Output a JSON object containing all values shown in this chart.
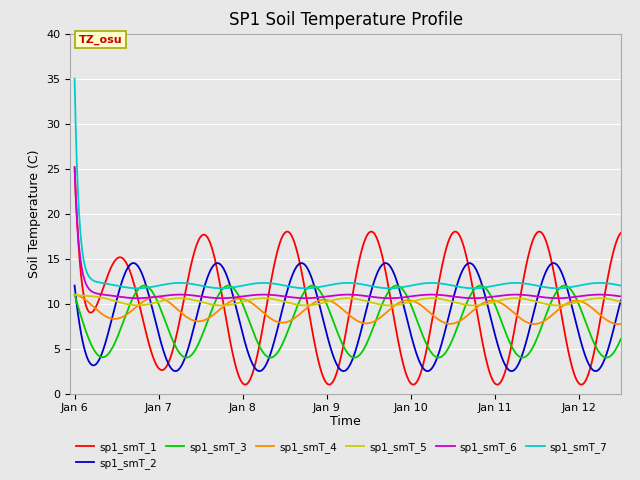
{
  "title": "SP1 Soil Temperature Profile",
  "xlabel": "Time",
  "ylabel": "Soil Temperature (C)",
  "ylim": [
    0,
    40
  ],
  "annotation_text": "TZ_osu",
  "line_colors": [
    "#ff0000",
    "#0000cc",
    "#00cc00",
    "#ff8800",
    "#cccc00",
    "#cc00cc",
    "#00cccc"
  ],
  "line_labels": [
    "sp1_smT_1",
    "sp1_smT_2",
    "sp1_smT_3",
    "sp1_smT_4",
    "sp1_smT_5",
    "sp1_smT_6",
    "sp1_smT_7"
  ],
  "xtick_labels": [
    "Jan 6",
    "Jan 7",
    "Jan 8",
    "Jan 9",
    "Jan 10",
    "Jan 11",
    "Jan 12"
  ],
  "xtick_positions": [
    0,
    1,
    2,
    3,
    4,
    5,
    6
  ],
  "ytick_positions": [
    0,
    5,
    10,
    15,
    20,
    25,
    30,
    35,
    40
  ],
  "bg_color": "#e8e8e8",
  "grid_color": "#ffffff",
  "title_fontsize": 12,
  "label_fontsize": 9,
  "tick_fontsize": 8
}
